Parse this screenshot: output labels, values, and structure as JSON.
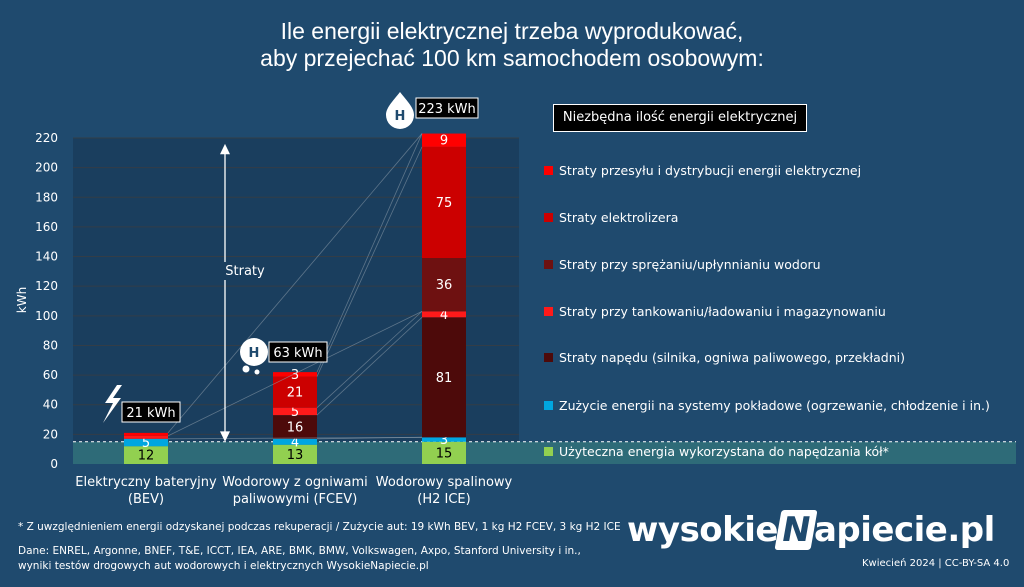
{
  "title_line1": "Ile energii elektrycznej trzeba wyprodukować,",
  "title_line2": "aby przejechać 100 km samochodem osobowym:",
  "legend_title": "Niezbędna ilość energii elektrycznej",
  "straty_label": "Straty",
  "footnote1": "* Z uwzględnieniem energii odzyskanej podczas rekuperacji  /  Zużycie aut: 19 kWh BEV, 1 kg H2 FCEV, 3 kg H2 ICE",
  "footnote2": "Dane: ENREL, Argonne, BNEF, T&E, ICCT, IEA, ARE, BMK, BMW, Volkswagen, Axpo, Stanford University i in.,",
  "footnote3": "wyniki testów drogowych aut wodorowych i elektrycznych WysokieNapiecie.pl",
  "brand": {
    "left": "wysokie",
    "mid": "N",
    "right": "apiecie.pl"
  },
  "date_license": "Kwiecień 2024  |  CC-BY-SA 4.0",
  "icons": [
    "lightning-icon",
    "hydrogen-bubble-icon",
    "hydrogen-drop-icon"
  ],
  "chart_data": {
    "type": "bar",
    "stacked": true,
    "ylabel": "kWh",
    "ylim": [
      0,
      220
    ],
    "yticks": [
      0,
      20,
      40,
      60,
      80,
      100,
      120,
      140,
      160,
      180,
      200,
      220
    ],
    "categories": [
      [
        "Elektryczny bateryjny",
        "(BEV)"
      ],
      [
        "Wodorowy z ogniwami",
        "paliwowymi (FCEV)"
      ],
      [
        "Wodorowy spalinowy",
        "(H2 ICE)"
      ]
    ],
    "totals": [
      "21 kWh",
      "63 kWh",
      "223 kWh"
    ],
    "series": [
      {
        "name": "Użyteczna energia wykorzystana do napędzania kół*",
        "color": "#92d050",
        "values": [
          12,
          13,
          15
        ]
      },
      {
        "name": "Zużycie energii na systemy pokładowe (ogrzewanie, chłodzenie i in.)",
        "color": "#00a6e0",
        "values": [
          5,
          4,
          3
        ]
      },
      {
        "name": "Straty napędu (silnika, ogniwa paliwowego, przekładni)",
        "color": "#4d0a0a",
        "values": [
          0,
          16,
          81
        ]
      },
      {
        "name": "Straty przy tankowaniu/ładowaniu i magazynowaniu",
        "color": "#ff1a1a",
        "values": [
          2,
          5,
          4
        ]
      },
      {
        "name": "Straty przy sprężaniu/upłynnianiu wodoru",
        "color": "#6e1111",
        "values": [
          0,
          0,
          36
        ]
      },
      {
        "name": "Straty elektrolizera",
        "color": "#cc0000",
        "values": [
          0,
          21,
          75
        ]
      },
      {
        "name": "Straty przesyłu i dystrybucji energii elektrycznej",
        "color": "#ff0000",
        "values": [
          2,
          3,
          9
        ]
      }
    ],
    "data_labels": [
      [
        "12",
        "5",
        "",
        "",
        "",
        "",
        ""
      ],
      [
        "13",
        "4",
        "16",
        "5",
        "",
        "21",
        "3"
      ],
      [
        "15",
        "3",
        "81",
        "4",
        "36",
        "75",
        "9"
      ]
    ]
  }
}
